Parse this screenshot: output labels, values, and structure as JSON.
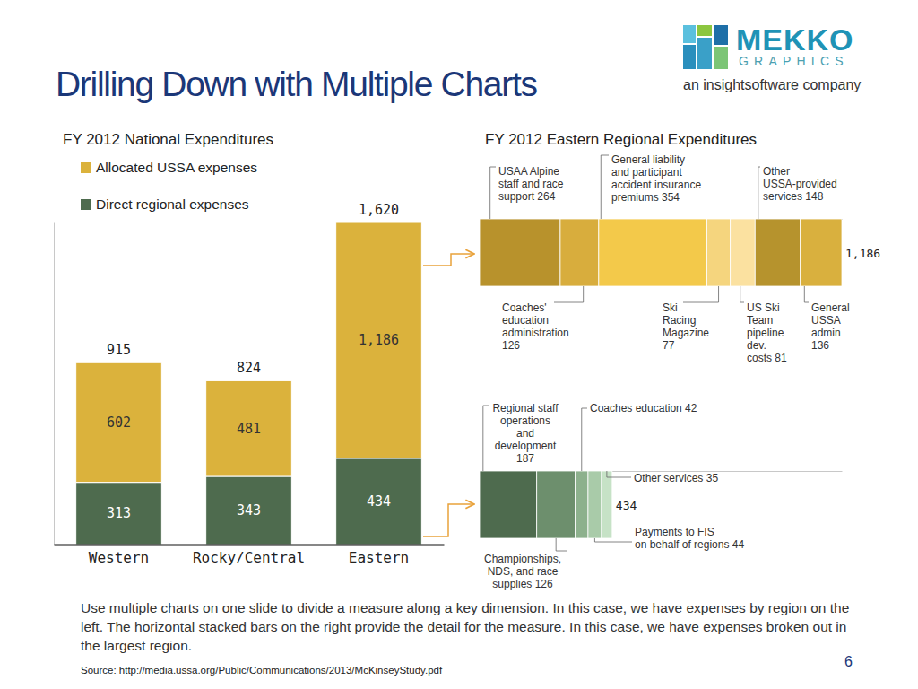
{
  "slide": {
    "title": "Drilling Down with Multiple Charts",
    "logo": {
      "name": "MEKKO",
      "tagline": "GRAPHICS",
      "company": "an insightsoftware company"
    },
    "caption": "Use multiple charts on one slide to divide a measure along a key dimension. In this case, we have expenses by region on the left. The horizontal stacked bars on the right provide the detail for the measure. In this case, we have expenses broken out in the largest region.",
    "source": "Source: http://media.ussa.org/Public/Communications/2013/McKinseyStudy.pdf",
    "page": 6
  },
  "chart_data": [
    {
      "type": "bar",
      "title": "FY 2012 National Expenditures",
      "categories": [
        "Western",
        "Rocky/Central",
        "Eastern"
      ],
      "series": [
        {
          "name": "Direct regional expenses",
          "color": "#4e6b4e",
          "values": [
            313,
            343,
            434
          ]
        },
        {
          "name": "Allocated USSA expenses",
          "color": "#dbb23c",
          "values": [
            602,
            481,
            1186
          ],
          "value_labels": [
            "602",
            "481",
            "1,186"
          ]
        }
      ],
      "totals": [
        915,
        824,
        1620
      ],
      "total_labels": [
        "915",
        "824",
        "1,620"
      ],
      "stacked": true,
      "data_labels": true,
      "legend": "top-left",
      "tick_labels": "x",
      "ylim": [
        0,
        1620
      ],
      "yticks": []
    },
    {
      "type": "bar",
      "title": "FY 2012 Eastern Regional Expenditures",
      "orientation": "horizontal",
      "stacked": true,
      "categories": [
        null
      ],
      "series": [
        {
          "name": "USAA Alpine staff and race support",
          "color": "#b8922c",
          "values": [
            264
          ]
        },
        {
          "name": "Coaches' education administration",
          "color": "#d8ad3d",
          "values": [
            126
          ]
        },
        {
          "name": "General liability and participant accident insurance premiums",
          "color": "#f3c94a",
          "values": [
            354
          ]
        },
        {
          "name": "Ski Racing Magazine",
          "color": "#f5d57e",
          "values": [
            77
          ]
        },
        {
          "name": "US Ski Team pipeline dev. costs",
          "color": "#fbe1a0",
          "values": [
            81
          ]
        },
        {
          "name": "Other USSA-provided services",
          "color": "#b6932d",
          "values": [
            148
          ]
        },
        {
          "name": "General USSA admin",
          "color": "#d9b03e",
          "values": [
            136
          ]
        }
      ],
      "totals": [
        1186
      ],
      "total_labels": [
        "1,186"
      ],
      "data_labels": true,
      "tick_labels": false,
      "xlim": [
        0,
        1186
      ],
      "xticks": []
    },
    {
      "type": "bar",
      "orientation": "horizontal",
      "stacked": true,
      "categories": [
        null
      ],
      "series": [
        {
          "name": "Regional staff operations and development",
          "color": "#4e6b4e",
          "values": [
            187
          ]
        },
        {
          "name": "Championships, NDS, and race supplies",
          "color": "#6d8f6d",
          "values": [
            126
          ]
        },
        {
          "name": "Coaches education",
          "color": "#8db18d",
          "values": [
            42
          ]
        },
        {
          "name": "Payments to FIS on behalf of regions",
          "color": "#a9cba9",
          "values": [
            44
          ]
        },
        {
          "name": "Other services",
          "color": "#c6e2c6",
          "values": [
            35
          ]
        }
      ],
      "totals": [
        434
      ],
      "total_labels": [
        "434"
      ],
      "data_labels": true,
      "tick_labels": false,
      "xlim": [
        0,
        1186
      ],
      "xticks": []
    }
  ]
}
